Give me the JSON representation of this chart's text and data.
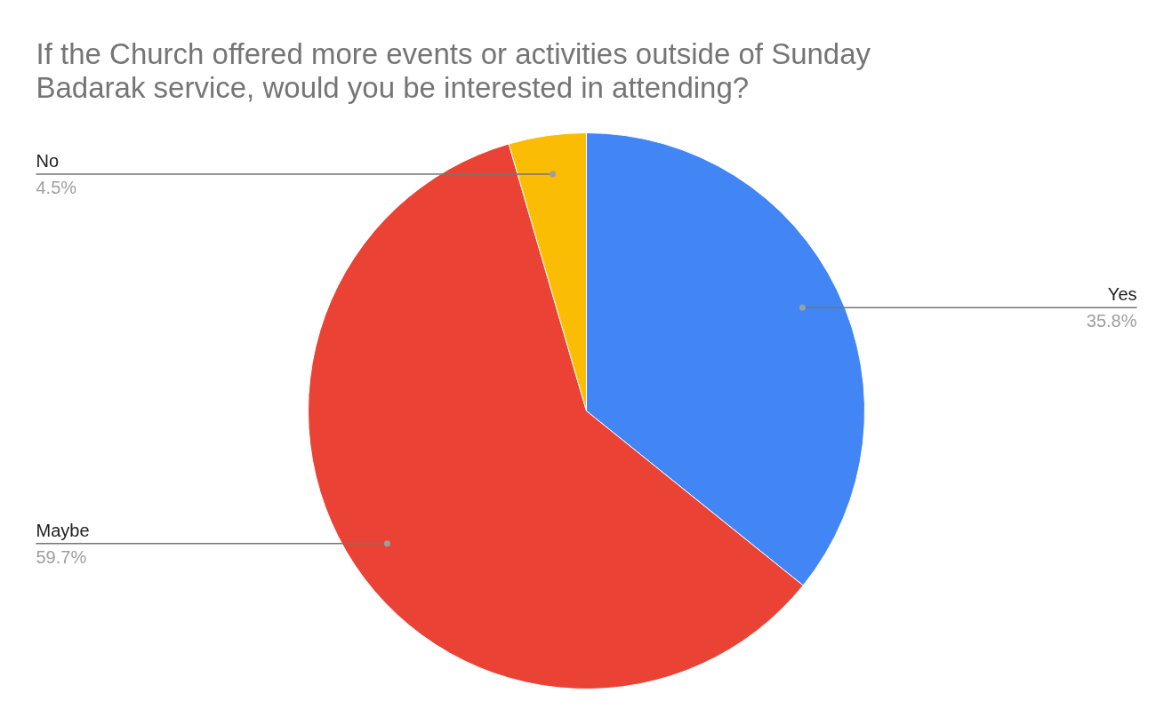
{
  "chart_data": {
    "type": "pie",
    "title": "If the Church offered more events or activities outside of Sunday Badarak service, would you be interested in attending?",
    "categories": [
      "Yes",
      "Maybe",
      "No"
    ],
    "values": [
      35.8,
      59.7,
      4.5
    ],
    "colors": [
      "#4285f4",
      "#ea4335",
      "#fbbc04"
    ],
    "value_labels": [
      "35.8%",
      "59.7%",
      "4.5%"
    ]
  }
}
